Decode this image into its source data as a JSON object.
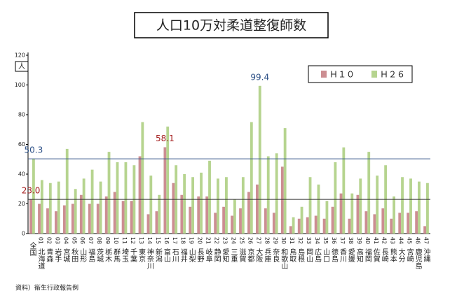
{
  "chart_data": {
    "type": "bar",
    "title": "人口10万対柔道整復師数",
    "y_unit": "人",
    "source": "資料）衛生行政報告例",
    "categories": [
      "全国",
      "北海道",
      "青森",
      "岩手",
      "宮城",
      "秋田",
      "山形",
      "福島",
      "茨城",
      "栃木",
      "群馬",
      "埼玉",
      "千葉",
      "東京",
      "神奈川",
      "新潟",
      "富山",
      "石川",
      "福井",
      "山梨",
      "長野",
      "岐阜",
      "静岡",
      "愛知",
      "三重",
      "滋賀",
      "京都",
      "大阪",
      "兵庫",
      "奈良",
      "和歌山",
      "鳥取",
      "島根",
      "岡山",
      "広島",
      "山口",
      "徳島",
      "香川",
      "愛媛",
      "高知",
      "福岡",
      "佐賀",
      "長崎",
      "熊本",
      "大分",
      "宮崎",
      "鹿児島",
      "沖縄"
    ],
    "category_codes": [
      null,
      "01",
      "02",
      "03",
      "04",
      "05",
      "06",
      "07",
      "08",
      "09",
      "10",
      "11",
      "12",
      "13",
      "14",
      "15",
      "16",
      "17",
      "18",
      "19",
      "20",
      "21",
      "22",
      "23",
      "24",
      "25",
      "26",
      "27",
      "28",
      "29",
      "30",
      "31",
      "32",
      "33",
      "34",
      "35",
      "36",
      "37",
      "38",
      "39",
      "40",
      "41",
      "42",
      "43",
      "44",
      "45",
      "46",
      "47"
    ],
    "series": [
      {
        "name": "Ｈ１０",
        "color": "#cc8e92",
        "label_color": "#a31c1c",
        "average_line_color": "#333333",
        "values": [
          23.0,
          20,
          17,
          15,
          19,
          20,
          26,
          20,
          20,
          25,
          28,
          22,
          22,
          52,
          13,
          15,
          58.1,
          34,
          26,
          18,
          25,
          25,
          14,
          18,
          12,
          17,
          28,
          33,
          17,
          14,
          45,
          5,
          10,
          11,
          12,
          10,
          18,
          27,
          10,
          26,
          15,
          13,
          17,
          10,
          14,
          14,
          15,
          5
        ],
        "value_labels": [
          "23.0",
          null,
          null,
          null,
          null,
          null,
          null,
          null,
          null,
          null,
          null,
          null,
          null,
          null,
          null,
          null,
          "58.1",
          null,
          null,
          null,
          null,
          null,
          null,
          null,
          null,
          null,
          null,
          null,
          null,
          null,
          null,
          null,
          null,
          null,
          null,
          null,
          null,
          null,
          null,
          null,
          null,
          null,
          null,
          null,
          null,
          null,
          null,
          null
        ]
      },
      {
        "name": "Ｈ２６",
        "color": "#b6d48f",
        "label_color": "#2b4f86",
        "average_line_color": "#3b5a8c",
        "values": [
          50.3,
          36,
          34,
          35,
          57,
          30,
          37,
          43,
          35,
          55,
          48,
          48,
          46,
          75,
          39,
          26,
          72,
          46,
          40,
          38,
          41,
          49,
          37,
          38,
          23,
          38,
          75,
          99.4,
          52,
          54,
          71,
          11,
          18,
          38,
          33,
          22,
          48,
          58,
          27,
          37,
          55,
          39,
          46,
          25,
          38,
          37,
          35,
          34
        ],
        "value_labels": [
          "50.3",
          null,
          null,
          null,
          null,
          null,
          null,
          null,
          null,
          null,
          null,
          null,
          null,
          null,
          null,
          null,
          null,
          null,
          null,
          null,
          null,
          null,
          null,
          null,
          null,
          null,
          null,
          "99.4",
          null,
          null,
          null,
          null,
          null,
          null,
          null,
          null,
          null,
          null,
          null,
          null,
          null,
          null,
          null,
          null,
          null,
          null,
          null,
          null
        ]
      }
    ],
    "average_lines": true,
    "ylim": [
      0,
      120
    ],
    "yticks": [
      0,
      20,
      40,
      60,
      80,
      100,
      120
    ],
    "grid": false
  }
}
